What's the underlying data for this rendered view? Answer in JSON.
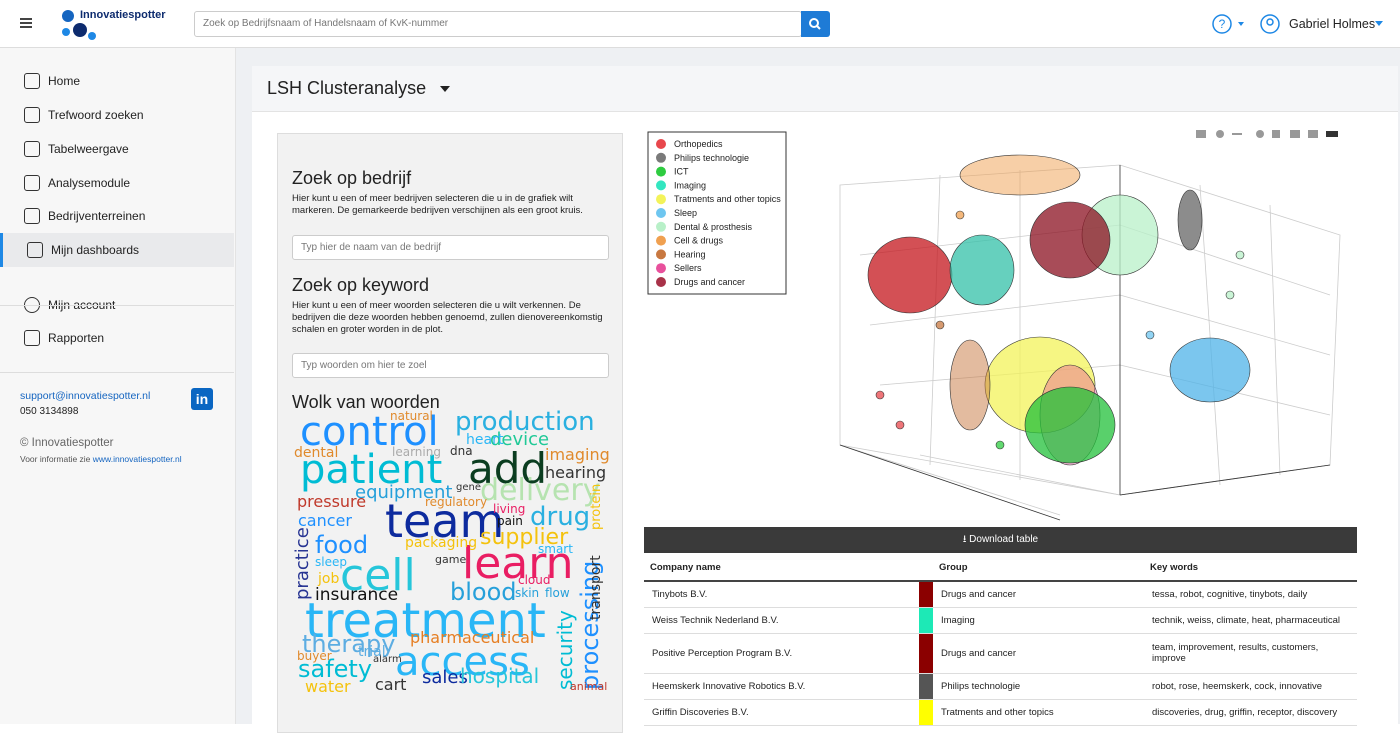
{
  "header": {
    "brand": "Innovatiespotter",
    "search_placeholder": "Zoek op Bedrijfsnaam of Handelsnaam of KvK-nummer",
    "user": "Gabriel Holmes"
  },
  "sidebar": {
    "nav": [
      "Home",
      "Trefwoord zoeken",
      "Tabelweergave",
      "Analysemodule",
      "Bedrijventerreinen",
      "Mijn dashboards"
    ],
    "account": [
      "Mijn account",
      "Rapporten"
    ],
    "email": "support@innovatiespotter.nl",
    "phone": "050 3134898",
    "copyright": "© Innovatiespotter",
    "info_prefix": "Voor informatie zie",
    "info_link": "www.innovatiespotter.nl"
  },
  "page_title": "LSH Clusteranalyse",
  "company_search": {
    "title": "Zoek op bedrijf",
    "text": "Hier kunt u een of meer bedrijven selecteren die u in de grafiek wilt markeren. De gemarkeerde bedrijven verschijnen als een groot kruis.",
    "placeholder": "Typ hier de naam van de bedrijf"
  },
  "keyword_search": {
    "title": "Zoek op keyword",
    "text": "Hier kunt u een of meer woorden selecteren die u wilt verkennen. De bedrijven die deze woorden hebben genoemd, zullen dienovereenkomstig schalen en groter worden in de plot.",
    "placeholder": "Typ woorden om hier te zoel"
  },
  "wordcloud": {
    "title": "Wolk van woorden",
    "words": [
      "control",
      "production",
      "patient",
      "add",
      "device",
      "imaging",
      "hearing",
      "delivery",
      "equipment",
      "pressure",
      "team",
      "drug",
      "cancer",
      "food",
      "supplier",
      "learn",
      "cell",
      "insurance",
      "treatment",
      "blood",
      "therapy",
      "pharmaceutical",
      "access",
      "safety",
      "sales",
      "hospital",
      "cart",
      "water",
      "processing",
      "security",
      "practice",
      "natural",
      "heart",
      "dental",
      "learning",
      "dna",
      "regulatory",
      "living",
      "pain",
      "packaging",
      "smart",
      "cloud",
      "skin",
      "flow",
      "game",
      "transport",
      "protein",
      "gene",
      "alarm",
      "trial",
      "buyer",
      "animal",
      "sleep",
      "job"
    ]
  },
  "legend": [
    {
      "name": "Orthopedics",
      "color": "#e8474c"
    },
    {
      "name": "Philips technologie",
      "color": "#7a7a7a"
    },
    {
      "name": "ICT",
      "color": "#2ecc40"
    },
    {
      "name": "Imaging",
      "color": "#33e6c0"
    },
    {
      "name": "Tratments and other topics",
      "color": "#f3f35a"
    },
    {
      "name": "Sleep",
      "color": "#6ec6f0"
    },
    {
      "name": "Dental & prosthesis",
      "color": "#b8f0c8"
    },
    {
      "name": "Cell & drugs",
      "color": "#f0a050"
    },
    {
      "name": "Hearing",
      "color": "#c87840"
    },
    {
      "name": "Sellers",
      "color": "#e8509c"
    },
    {
      "name": "Drugs and cancer",
      "color": "#a83248"
    }
  ],
  "download": "Download table",
  "table": {
    "columns": [
      "Company name",
      "Group",
      "Key words"
    ],
    "rows": [
      [
        "Tinybots B.V.",
        "Drugs and cancer",
        "tessa, robot, cognitive, tinybots, daily"
      ],
      [
        "Weiss Technik Nederland B.V.",
        "Imaging",
        "technik, weiss, climate, heat, pharmaceutical"
      ],
      [
        "Positive Perception Program B.V.",
        "Drugs and cancer",
        "team, improvement, results, customers, improve"
      ],
      [
        "Heemskerk Innovative Robotics B.V.",
        "Philips technologie",
        "robot, rose, heemskerk, cock, innovative"
      ],
      [
        "Griffin Discoveries B.V.",
        "Tratments and other topics",
        "discoveries, drug, griffin, receptor, discovery"
      ]
    ],
    "group_colors": {
      "Drugs and cancer": "#8b0000",
      "Imaging": "#1de9b6",
      "Philips technologie": "#555555",
      "Tratments and other topics": "#ffff00"
    }
  }
}
